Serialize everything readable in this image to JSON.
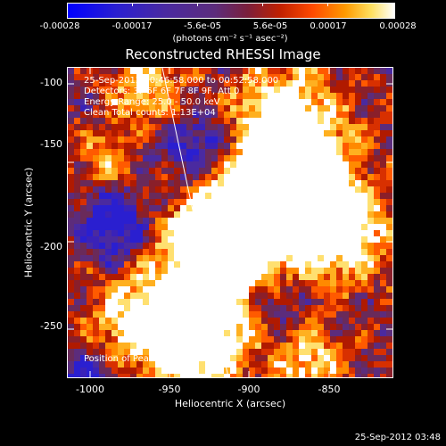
{
  "colorbar": {
    "tick_labels": [
      "-0.00028",
      "-0.00017",
      "-5.6e-05",
      "5.6e-05",
      "0.00017",
      "0.00028"
    ],
    "units": "(photons cm⁻² s⁻¹ asec⁻²)"
  },
  "image": {
    "title": "Reconstructed RHESSI Image",
    "info_lines": [
      "25-Sep-2012 00:46:58.000 to 00:52:58.000",
      "Detectors: 3F 5F 6F 7F 8F 9F, Att 0",
      "Energy Range: 25.0 - 50.0 keV",
      "Clean     Total counts: 1.13E+04"
    ],
    "peak_text": "Position of Peak = [-978,-94]",
    "xlabel": "Heliocentric X (arcsec)",
    "ylabel": "Heliocentric Y (arcsec)",
    "x_tick_labels": [
      "-1000",
      "-950",
      "-900",
      "-850"
    ],
    "y_tick_labels": [
      "-100",
      "-150",
      "-200",
      "-250"
    ],
    "xlim": [
      -1012,
      -825
    ],
    "ylim": [
      -283,
      -86
    ]
  },
  "footer": {
    "timestamp": "25-Sep-2012 03:48"
  }
}
